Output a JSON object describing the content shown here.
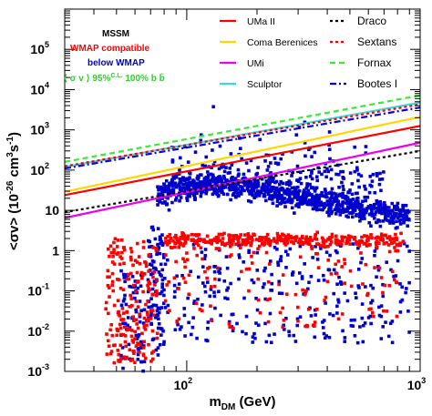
{
  "chart_data": {
    "type": "scatter",
    "x_scale": "log",
    "y_scale": "log",
    "xlim": [
      30,
      1000
    ],
    "ylim": [
      0.001,
      1000000
    ],
    "xlabel": "m_DM (GeV)",
    "xlabel_main": "m",
    "xlabel_sub": "DM",
    "xlabel_unit": " (GeV)",
    "ylabel": "<σv> (10^-26 cm^3 s^-1)",
    "ylabel_parts": {
      "a": "<σv> (10",
      "b": "-26",
      "c": " cm",
      "d": "3",
      "e": "s",
      "f": "-1",
      "g": ")"
    },
    "x_ticks": [
      {
        "value": 100,
        "label": "10",
        "exp": "2"
      },
      {
        "value": 1000,
        "label": "10",
        "exp": "3"
      }
    ],
    "y_ticks": [
      {
        "value": 0.001,
        "label": "10",
        "exp": "-3"
      },
      {
        "value": 0.01,
        "label": "10",
        "exp": "-2"
      },
      {
        "value": 0.1,
        "label": "10",
        "exp": "-1"
      },
      {
        "value": 1,
        "label": "1",
        "exp": ""
      },
      {
        "value": 10,
        "label": "10",
        "exp": ""
      },
      {
        "value": 100,
        "label": "10",
        "exp": "2"
      },
      {
        "value": 1000,
        "label": "10",
        "exp": "3"
      },
      {
        "value": 10000,
        "label": "10",
        "exp": "4"
      },
      {
        "value": 100000,
        "label": "10",
        "exp": "5"
      }
    ],
    "annotations": {
      "model": {
        "text": "MSSM",
        "color": "#000000"
      },
      "wmap_compatible": {
        "text": "WMAP compatible",
        "color": "#ff0000"
      },
      "below_wmap": {
        "text": "below WMAP",
        "color": "#0000cc"
      },
      "cl_label": {
        "text": "⟨ σ v ⟩ 95%",
        "sup": "C.L.",
        "tail": " 100% b b̄",
        "color": "#33cc33"
      }
    },
    "series": [
      {
        "name": "UMa II",
        "style": "solid",
        "color": "#ff0000",
        "x": [
          30,
          1000
        ],
        "y": [
          24,
          1250
        ]
      },
      {
        "name": "Coma Berenices",
        "style": "solid",
        "color": "#ffd700",
        "x": [
          30,
          1000
        ],
        "y": [
          29,
          2100
        ]
      },
      {
        "name": "UMi",
        "style": "solid",
        "color": "#ee00ee",
        "x": [
          30,
          1000
        ],
        "y": [
          6.5,
          480
        ]
      },
      {
        "name": "Sculptor",
        "style": "solid",
        "color": "#33dddd",
        "x": [
          30,
          1000
        ],
        "y": [
          120,
          4800
        ]
      },
      {
        "name": "Draco",
        "style": "dotted",
        "color": "#000000",
        "x": [
          30,
          1000
        ],
        "y": [
          9,
          300
        ]
      },
      {
        "name": "Sextans",
        "style": "dotted",
        "color": "#ff0000",
        "x": [
          30,
          1000
        ],
        "y": [
          125,
          4300
        ]
      },
      {
        "name": "Fornax",
        "style": "dashed",
        "color": "#33ee33",
        "x": [
          30,
          1000
        ],
        "y": [
          160,
          7200
        ]
      },
      {
        "name": "Bootes I",
        "style": "dashdot",
        "color": "#0000ee",
        "x": [
          30,
          1000
        ],
        "y": [
          110,
          3600
        ]
      }
    ],
    "scatter_sets": [
      {
        "name": "below WMAP",
        "color": "#0000cc",
        "count": 1500
      },
      {
        "name": "WMAP compatible",
        "color": "#ff0000",
        "count": 650
      }
    ]
  },
  "legend": {
    "left_column": [
      "UMa II",
      "Coma Berenices",
      "UMi",
      "Sculptor"
    ],
    "right_column": [
      "Draco",
      "Sextans",
      "Fornax",
      "Bootes I"
    ]
  }
}
